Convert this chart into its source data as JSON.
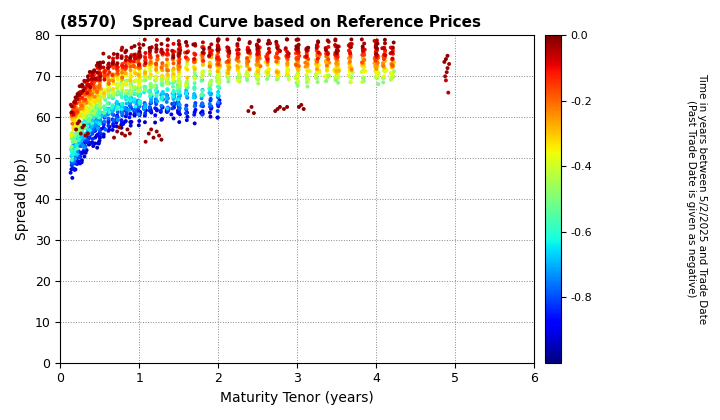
{
  "title": "(8570)   Spread Curve based on Reference Prices",
  "xlabel": "Maturity Tenor (years)",
  "ylabel": "Spread (bp)",
  "colorbar_label": "Time in years between 5/2/2025 and Trade Date\n(Past Trade Date is given as negative)",
  "xlim": [
    0,
    6
  ],
  "ylim": [
    0,
    80
  ],
  "xticks": [
    0,
    1,
    2,
    3,
    4,
    5,
    6
  ],
  "yticks": [
    0,
    10,
    20,
    30,
    40,
    50,
    60,
    70,
    80
  ],
  "cmap": "jet",
  "vmin": -1.0,
  "vmax": 0.0,
  "background_color": "#ffffff",
  "grid_color": "#888888",
  "marker_size": 8
}
